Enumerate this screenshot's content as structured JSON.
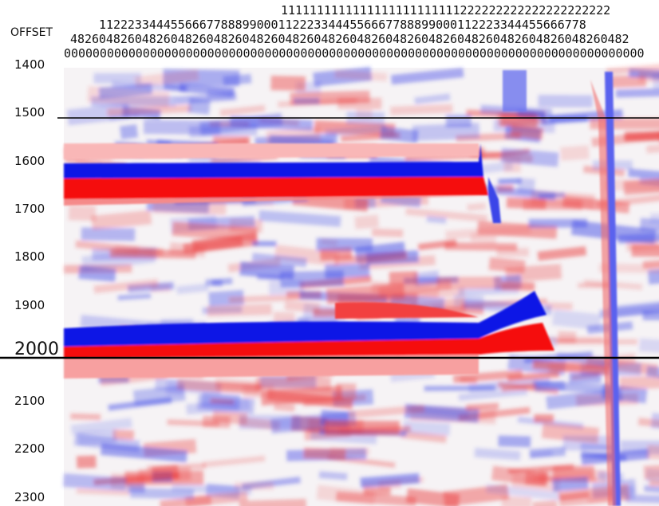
{
  "header": {
    "label": "OFFSET",
    "rows": [
      "1111111111111111111111111222222222222222222222",
      "11222334445566677888990001122233444556667788899000112223344455666778",
      "482604826048260482604826048260482604826048260482604826048260482604826048260482",
      "000000000000000000000000000000000000000000000000000000000000000000000000000000000"
    ]
  },
  "time_axis": {
    "labels": [
      "1400",
      "1500",
      "1600",
      "1700",
      "1800",
      "1900",
      "2000",
      "2100",
      "2200",
      "2300"
    ]
  }
}
